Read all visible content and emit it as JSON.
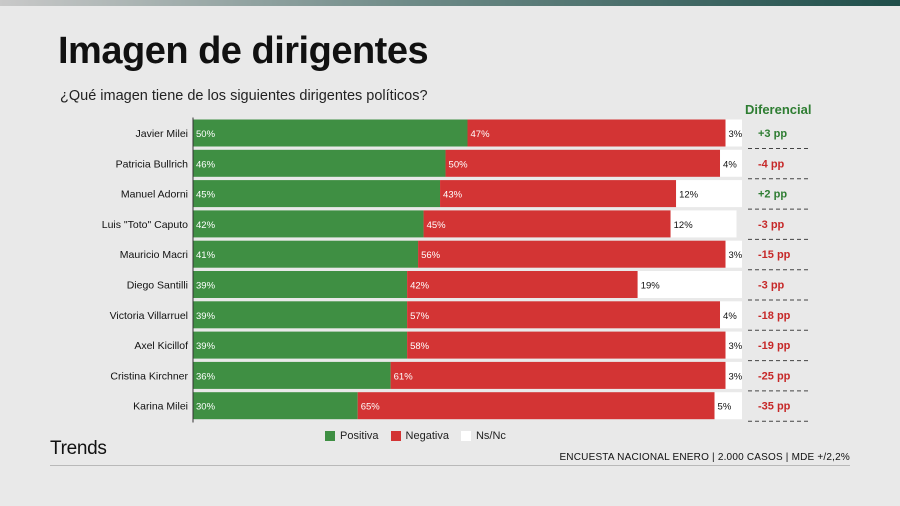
{
  "title": "Imagen de dirigentes",
  "subtitle": "¿Qué imagen tiene de los siguientes dirigentes políticos?",
  "diff_header": "Diferencial",
  "brand": "Trends",
  "footnote": "ENCUESTA NACIONAL ENERO | 2.000 CASOS | MDE +/2,2%",
  "colors": {
    "positiva": "#3f8f43",
    "negativa": "#d33434",
    "nsnc": "#ffffff",
    "diff_positive": "#2e7d32",
    "diff_negative": "#c62828"
  },
  "legend": [
    {
      "label": "Positiva",
      "color": "#3f8f43"
    },
    {
      "label": "Negativa",
      "color": "#d33434"
    },
    {
      "label": "Ns/Nc",
      "color": "#ffffff"
    }
  ],
  "chart_data": {
    "type": "bar",
    "stacked": true,
    "orientation": "horizontal",
    "categories": [
      "Javier Milei",
      "Patricia Bullrich",
      "Manuel Adorni",
      "Luis \"Toto\" Caputo",
      "Mauricio Macri",
      "Diego Santilli",
      "Victoria Villarruel",
      "Axel Kicillof",
      "Cristina Kirchner",
      "Karina Milei"
    ],
    "series": [
      {
        "name": "Positiva",
        "values": [
          50,
          46,
          45,
          42,
          41,
          39,
          39,
          39,
          36,
          30
        ]
      },
      {
        "name": "Negativa",
        "values": [
          47,
          50,
          43,
          45,
          56,
          42,
          57,
          58,
          61,
          65
        ]
      },
      {
        "name": "Ns/Nc",
        "values": [
          3,
          4,
          12,
          12,
          3,
          19,
          4,
          3,
          3,
          5
        ]
      }
    ],
    "diferencial": [
      "+3 pp",
      "-4 pp",
      "+2 pp",
      "-3 pp",
      "-15 pp",
      "-3 pp",
      "-18 pp",
      "-19 pp",
      "-25 pp",
      "-35 pp"
    ],
    "xlim": [
      0,
      100
    ],
    "legend_position": "bottom"
  }
}
